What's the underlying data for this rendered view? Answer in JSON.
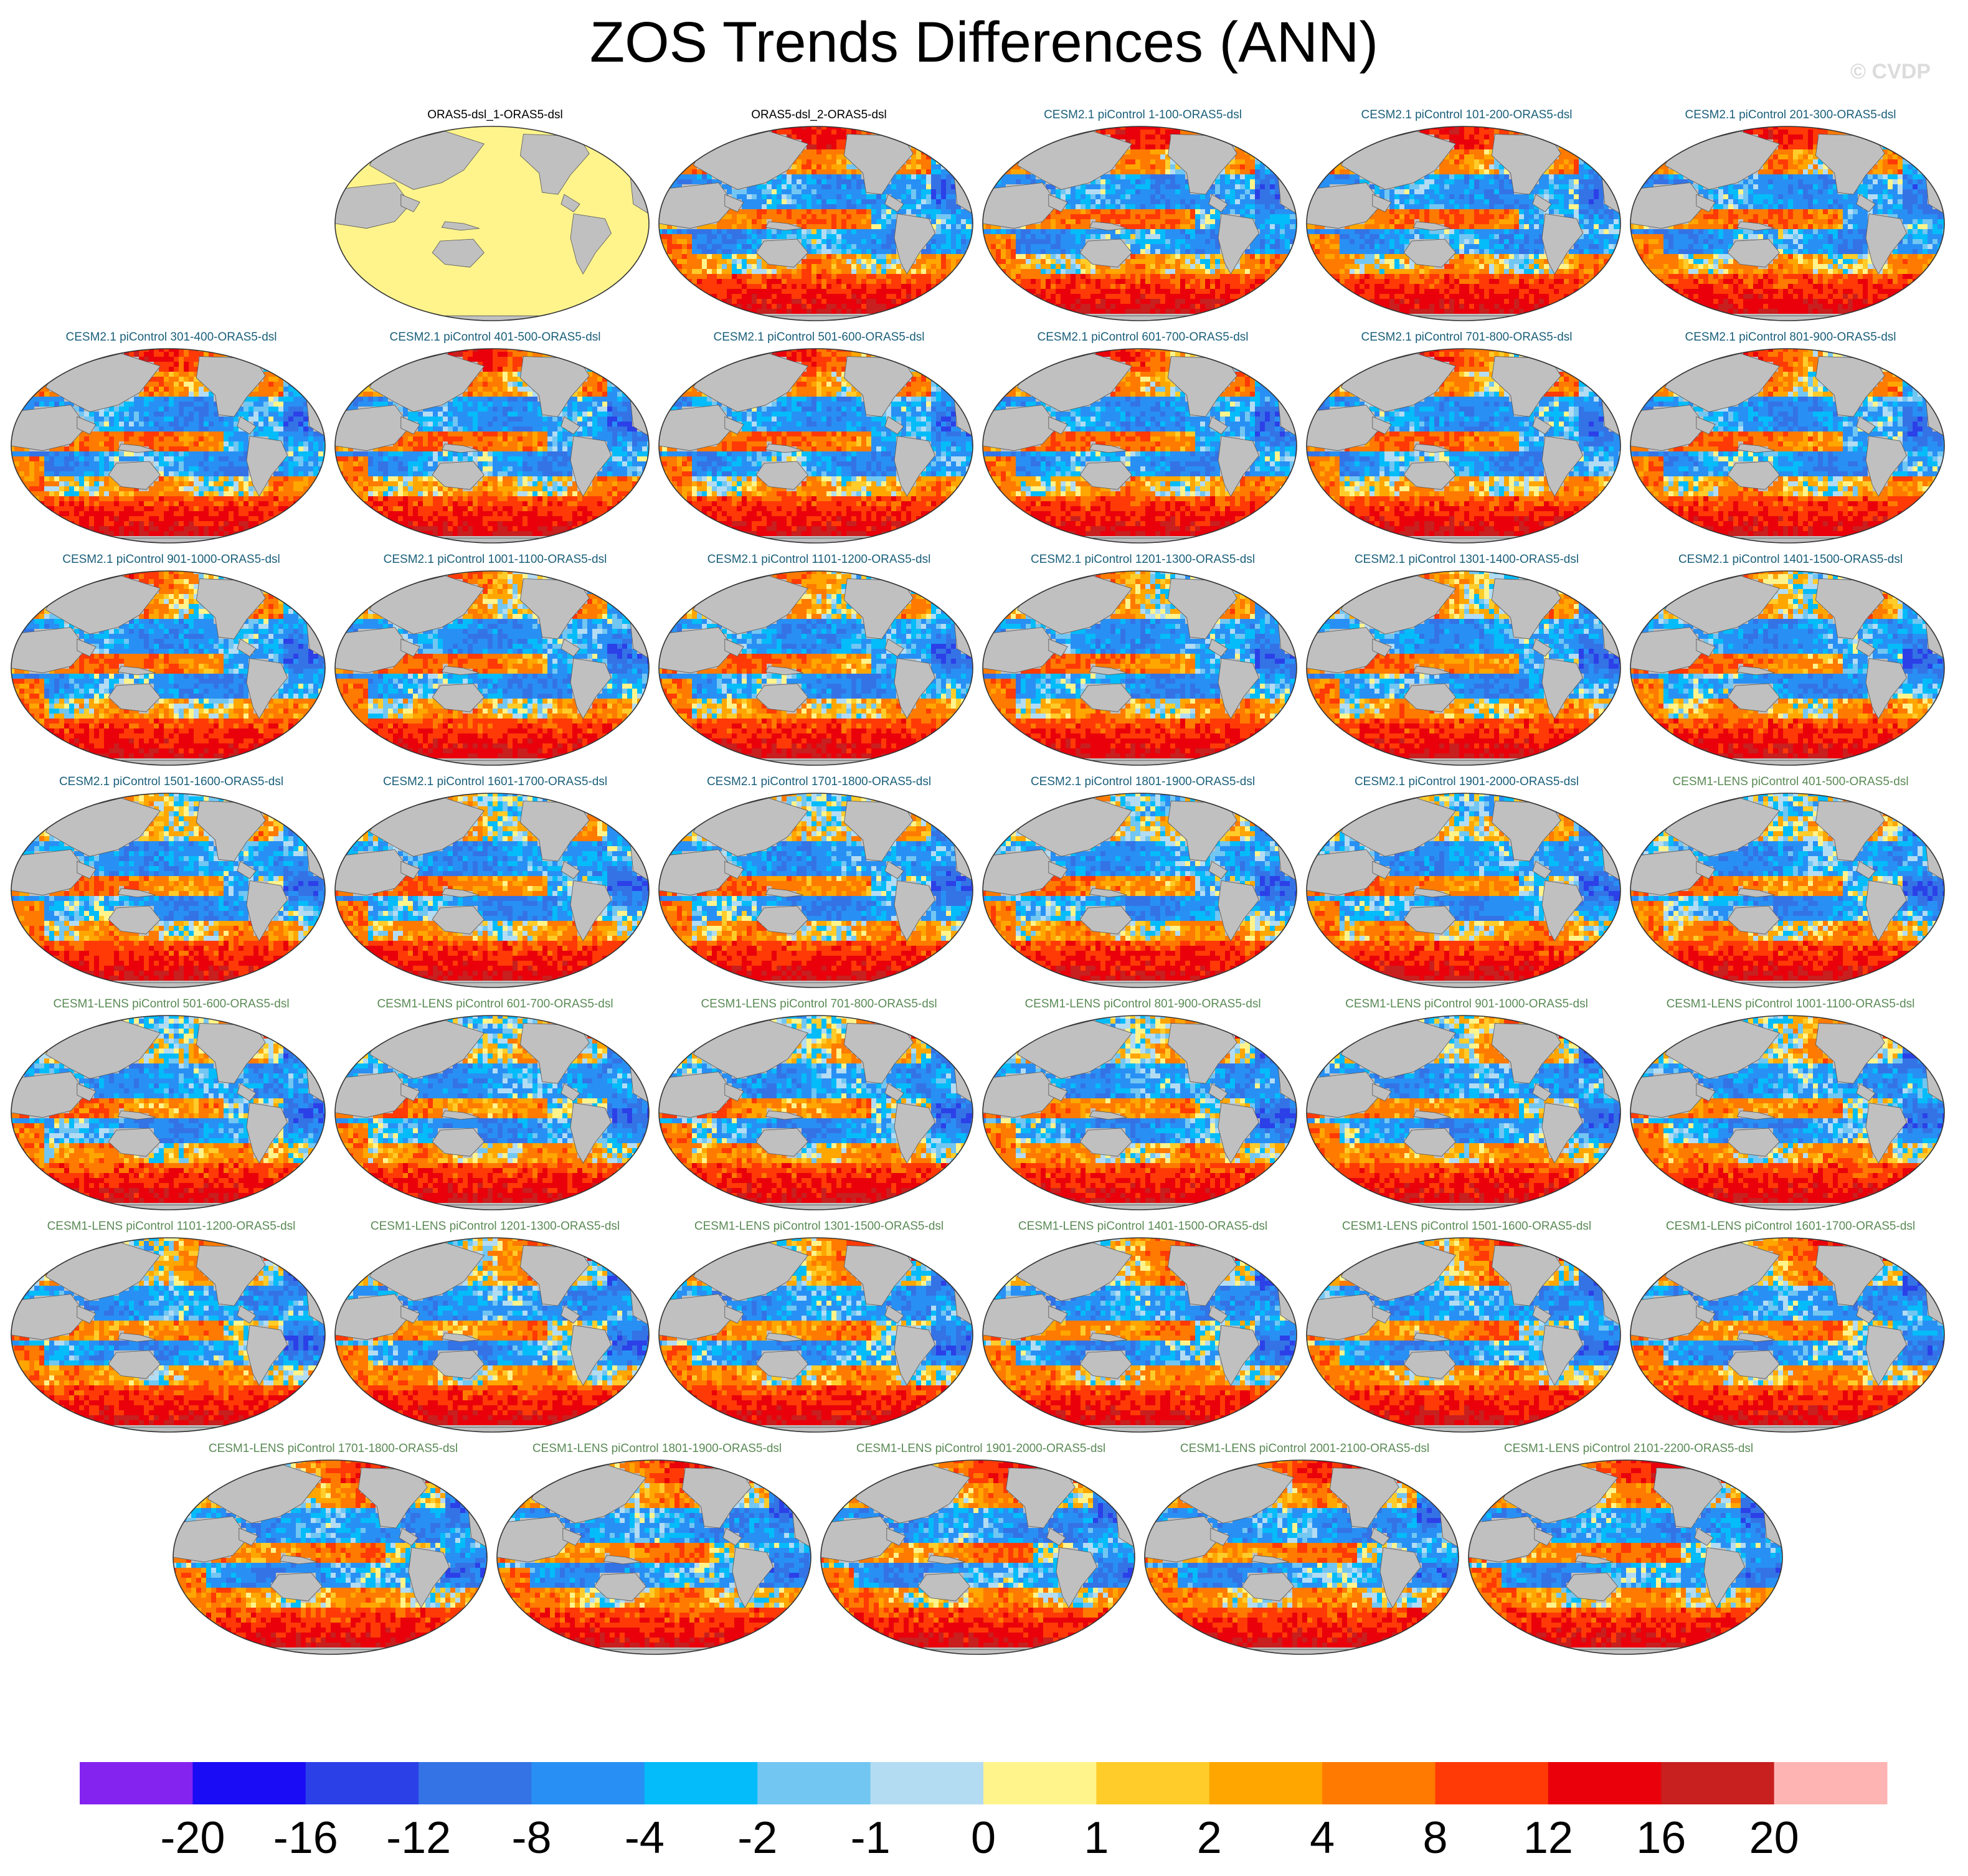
{
  "title": "ZOS Trends Differences (ANN)",
  "watermark": "© CVDP",
  "colors": {
    "land": "#c0c0c0",
    "obs_panel_fill": "#fff48c",
    "obs_title": "#000000",
    "cesm2_title": "#1a5f7a",
    "cesm1_title": "#5a8a55"
  },
  "chart_data": {
    "type": "heatmap",
    "title": "ZOS Trends Differences (ANN)",
    "projection": "Robinson (Pacific-centered)",
    "variable": "ZOS",
    "season": "ANN",
    "panels": [
      {
        "title": "ORAS5-dsl_1-ORAS5-dsl",
        "group": "obs",
        "seed": 1
      },
      {
        "title": "ORAS5-dsl_2-ORAS5-dsl",
        "group": "obs",
        "seed": 2
      },
      {
        "title": "CESM2.1 piControl 1-100-ORAS5-dsl",
        "group": "cesm2",
        "seed": 3
      },
      {
        "title": "CESM2.1 piControl 101-200-ORAS5-dsl",
        "group": "cesm2",
        "seed": 4
      },
      {
        "title": "CESM2.1 piControl 201-300-ORAS5-dsl",
        "group": "cesm2",
        "seed": 5
      },
      {
        "title": "CESM2.1 piControl 301-400-ORAS5-dsl",
        "group": "cesm2",
        "seed": 6
      },
      {
        "title": "CESM2.1 piControl 401-500-ORAS5-dsl",
        "group": "cesm2",
        "seed": 7
      },
      {
        "title": "CESM2.1 piControl 501-600-ORAS5-dsl",
        "group": "cesm2",
        "seed": 8
      },
      {
        "title": "CESM2.1 piControl 601-700-ORAS5-dsl",
        "group": "cesm2",
        "seed": 9
      },
      {
        "title": "CESM2.1 piControl 701-800-ORAS5-dsl",
        "group": "cesm2",
        "seed": 10
      },
      {
        "title": "CESM2.1 piControl 801-900-ORAS5-dsl",
        "group": "cesm2",
        "seed": 11
      },
      {
        "title": "CESM2.1 piControl 901-1000-ORAS5-dsl",
        "group": "cesm2",
        "seed": 12
      },
      {
        "title": "CESM2.1 piControl 1001-1100-ORAS5-dsl",
        "group": "cesm2",
        "seed": 13
      },
      {
        "title": "CESM2.1 piControl 1101-1200-ORAS5-dsl",
        "group": "cesm2",
        "seed": 14
      },
      {
        "title": "CESM2.1 piControl 1201-1300-ORAS5-dsl",
        "group": "cesm2",
        "seed": 15
      },
      {
        "title": "CESM2.1 piControl 1301-1400-ORAS5-dsl",
        "group": "cesm2",
        "seed": 16
      },
      {
        "title": "CESM2.1 piControl 1401-1500-ORAS5-dsl",
        "group": "cesm2",
        "seed": 17
      },
      {
        "title": "CESM2.1 piControl 1501-1600-ORAS5-dsl",
        "group": "cesm2",
        "seed": 18
      },
      {
        "title": "CESM2.1 piControl 1601-1700-ORAS5-dsl",
        "group": "cesm2",
        "seed": 19
      },
      {
        "title": "CESM2.1 piControl 1701-1800-ORAS5-dsl",
        "group": "cesm2",
        "seed": 20
      },
      {
        "title": "CESM2.1 piControl 1801-1900-ORAS5-dsl",
        "group": "cesm2",
        "seed": 21
      },
      {
        "title": "CESM2.1 piControl 1901-2000-ORAS5-dsl",
        "group": "cesm2",
        "seed": 22
      },
      {
        "title": "CESM1-LENS piControl 401-500-ORAS5-dsl",
        "group": "cesm1",
        "seed": 23
      },
      {
        "title": "CESM1-LENS piControl 501-600-ORAS5-dsl",
        "group": "cesm1",
        "seed": 24
      },
      {
        "title": "CESM1-LENS piControl 601-700-ORAS5-dsl",
        "group": "cesm1",
        "seed": 25
      },
      {
        "title": "CESM1-LENS piControl 701-800-ORAS5-dsl",
        "group": "cesm1",
        "seed": 26
      },
      {
        "title": "CESM1-LENS piControl 801-900-ORAS5-dsl",
        "group": "cesm1",
        "seed": 27
      },
      {
        "title": "CESM1-LENS piControl 901-1000-ORAS5-dsl",
        "group": "cesm1",
        "seed": 28
      },
      {
        "title": "CESM1-LENS piControl 1001-1100-ORAS5-dsl",
        "group": "cesm1",
        "seed": 29
      },
      {
        "title": "CESM1-LENS piControl 1101-1200-ORAS5-dsl",
        "group": "cesm1",
        "seed": 30
      },
      {
        "title": "CESM1-LENS piControl 1201-1300-ORAS5-dsl",
        "group": "cesm1",
        "seed": 31
      },
      {
        "title": "CESM1-LENS piControl 1301-1500-ORAS5-dsl",
        "group": "cesm1",
        "seed": 32
      },
      {
        "title": "CESM1-LENS piControl 1401-1500-ORAS5-dsl",
        "group": "cesm1",
        "seed": 33
      },
      {
        "title": "CESM1-LENS piControl 1501-1600-ORAS5-dsl",
        "group": "cesm1",
        "seed": 34
      },
      {
        "title": "CESM1-LENS piControl 1601-1700-ORAS5-dsl",
        "group": "cesm1",
        "seed": 35
      },
      {
        "title": "CESM1-LENS piControl 1701-1800-ORAS5-dsl",
        "group": "cesm1",
        "seed": 36
      },
      {
        "title": "CESM1-LENS piControl 1801-1900-ORAS5-dsl",
        "group": "cesm1",
        "seed": 37
      },
      {
        "title": "CESM1-LENS piControl 1901-2000-ORAS5-dsl",
        "group": "cesm1",
        "seed": 38
      },
      {
        "title": "CESM1-LENS piControl 2001-2100-ORAS5-dsl",
        "group": "cesm1",
        "seed": 39
      },
      {
        "title": "CESM1-LENS piControl 2101-2200-ORAS5-dsl",
        "group": "cesm1",
        "seed": 40
      }
    ],
    "colorbar": {
      "levels": [
        -20,
        -16,
        -12,
        -8,
        -4,
        -2,
        -1,
        0,
        1,
        2,
        4,
        8,
        12,
        16,
        20
      ],
      "labels": [
        "-20",
        "-16",
        "-12",
        "-8",
        "-4",
        "-2",
        "-1",
        "0",
        "1",
        "2",
        "4",
        "8",
        "12",
        "16",
        "20"
      ],
      "colors": [
        "#8423f0",
        "#1a0cf5",
        "#2c40e8",
        "#3473e6",
        "#2890f4",
        "#04bcf9",
        "#72c6f2",
        "#b3dcf3",
        "#fff48c",
        "#ffcc2a",
        "#ffa600",
        "#ff7a00",
        "#ff3a06",
        "#e9000b",
        "#c81f1f",
        "#ffb4b4"
      ]
    }
  }
}
